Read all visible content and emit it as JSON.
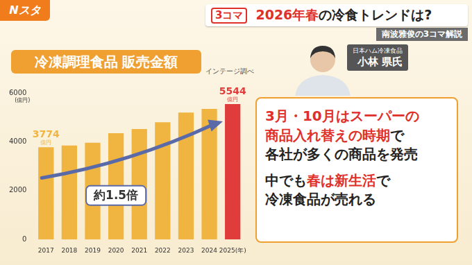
{
  "header": {
    "logo": "Nスタ",
    "badge": "3コマ",
    "title": [
      {
        "text": "2026年春",
        "color": "#e0302a"
      },
      {
        "text": "の冷食トレンドは?",
        "color": "#222222"
      }
    ],
    "subtitle": "南波雅俊の3コマ解説"
  },
  "person": {
    "company": "日本ハム冷凍食品",
    "name": "小林 県氏"
  },
  "callout": {
    "paragraphs": [
      [
        [
          {
            "text": "3月・10月はスーパーの",
            "color": "#e0302a"
          }
        ],
        [
          {
            "text": "商品入れ替えの時期",
            "color": "#e0302a"
          },
          {
            "text": "で",
            "color": "#222222"
          }
        ],
        [
          {
            "text": "各社が多くの商品を発売",
            "color": "#222222"
          }
        ]
      ],
      [
        [
          {
            "text": "中でも",
            "color": "#222222"
          },
          {
            "text": "春は新生活",
            "color": "#e0302a"
          },
          {
            "text": "で",
            "color": "#222222"
          }
        ],
        [
          {
            "text": "冷凍食品が売れる",
            "color": "#222222"
          }
        ]
      ]
    ]
  },
  "chart_data": {
    "type": "bar",
    "title": "冷凍調理食品 販売金額",
    "source": "インテージ調べ",
    "ylabel": "(億円)",
    "value_unit": "億円",
    "annotation": "約1.5倍",
    "categories": [
      "2017",
      "2018",
      "2019",
      "2020",
      "2021",
      "2022",
      "2023",
      "2024",
      "2025(年)"
    ],
    "values": [
      3774,
      3850,
      3960,
      4350,
      4520,
      4800,
      5200,
      5350,
      5544
    ],
    "value_labels": [
      "3774",
      null,
      null,
      null,
      null,
      null,
      null,
      null,
      "5544"
    ],
    "colors": [
      "#f0b440",
      "#f0b440",
      "#f0b440",
      "#f0b440",
      "#f0b440",
      "#f0b440",
      "#f0b440",
      "#f0b440",
      "#e03c3c"
    ],
    "ylim": [
      0,
      6000
    ],
    "yticks": [
      0,
      2000,
      4000,
      6000
    ],
    "grid": false,
    "data_labels": true
  }
}
